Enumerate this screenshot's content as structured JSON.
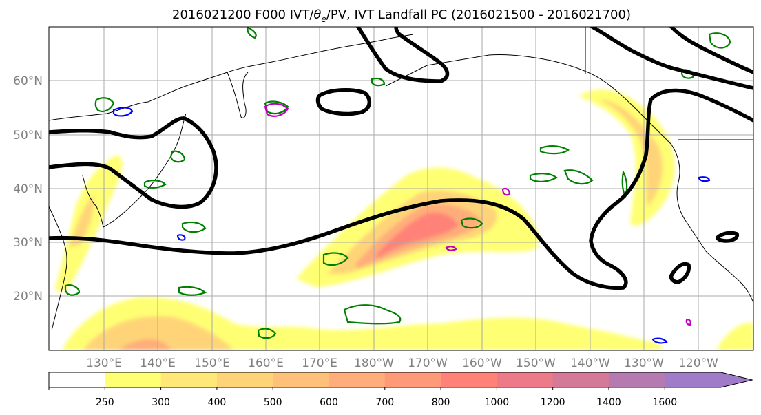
{
  "title_prefix": "2016021200 F000 IVT/",
  "title_theta": "θ",
  "title_sub": "e",
  "title_suffix": "/PV, IVT Landfall PC (2016021500 - 2016021700)",
  "lat_labels": [
    "60°N",
    "50°N",
    "40°N",
    "30°N",
    "20°N"
  ],
  "lon_labels": [
    "130°E",
    "140°E",
    "150°E",
    "160°E",
    "170°E",
    "180°W",
    "170°W",
    "160°W",
    "150°W",
    "140°W",
    "130°W",
    "120°W"
  ],
  "colorbar": {
    "levels": [
      "250",
      "300",
      "400",
      "500",
      "600",
      "700",
      "800",
      "1000",
      "1200",
      "1400",
      "1600"
    ],
    "colors": [
      "#ffffff",
      "#ffff73",
      "#ffe878",
      "#ffd478",
      "#ffc07a",
      "#ffad7a",
      "#ff9a78",
      "#ff8278",
      "#ec7a88",
      "#d47a98",
      "#b57aaf",
      "#a07cc8"
    ]
  },
  "colors": {
    "ivt_colormap": [
      "#ffff73",
      "#ffe878",
      "#ffd478",
      "#ffc07a",
      "#ffad7a",
      "#ff9a78",
      "#ff8278",
      "#ec7a88"
    ],
    "pv_contour": "#000000",
    "theta_e_contour": "#008000",
    "blue_contour": "#0000ff",
    "magenta_contour": "#c000c0",
    "coastline": "#000000",
    "gridline": "#aaaaaa"
  }
}
